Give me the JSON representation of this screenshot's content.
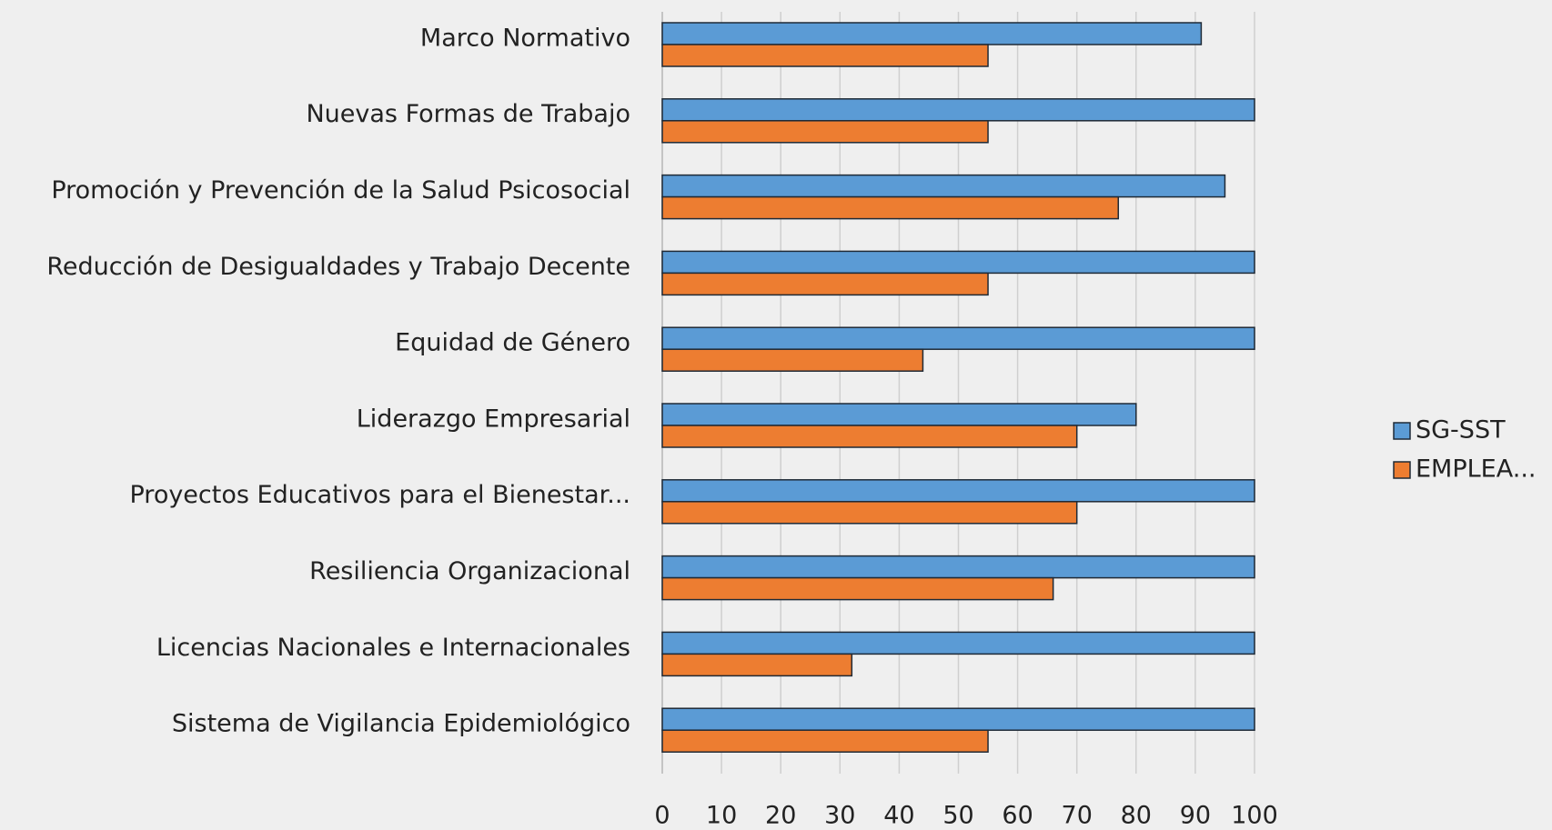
{
  "chart_data": {
    "type": "bar",
    "orientation": "horizontal",
    "categories": [
      "Marco Normativo",
      "Nuevas Formas de Trabajo",
      "Promoción y Prevención de la Salud Psicosocial",
      "Reducción de Desigualdades y Trabajo Decente",
      "Equidad de Género",
      "Liderazgo Empresarial",
      "Proyectos Educativos para el Bienestar...",
      "Resiliencia Organizacional",
      "Licencias Nacionales e Internacionales",
      "Sistema de Vigilancia Epidemiológico"
    ],
    "series": [
      {
        "name": "SG-SST",
        "color": "#5b9bd5",
        "values": [
          91,
          100,
          95,
          100,
          100,
          80,
          100,
          100,
          100,
          100
        ]
      },
      {
        "name": "EMPLEA...",
        "color": "#ed7d31",
        "values": [
          55,
          55,
          77,
          55,
          44,
          70,
          70,
          66,
          32,
          55
        ]
      }
    ],
    "xlim": [
      0,
      100
    ],
    "xticks": [
      0,
      10,
      20,
      30,
      40,
      50,
      60,
      70,
      80,
      90,
      100
    ],
    "grid": true,
    "legend": "right"
  }
}
